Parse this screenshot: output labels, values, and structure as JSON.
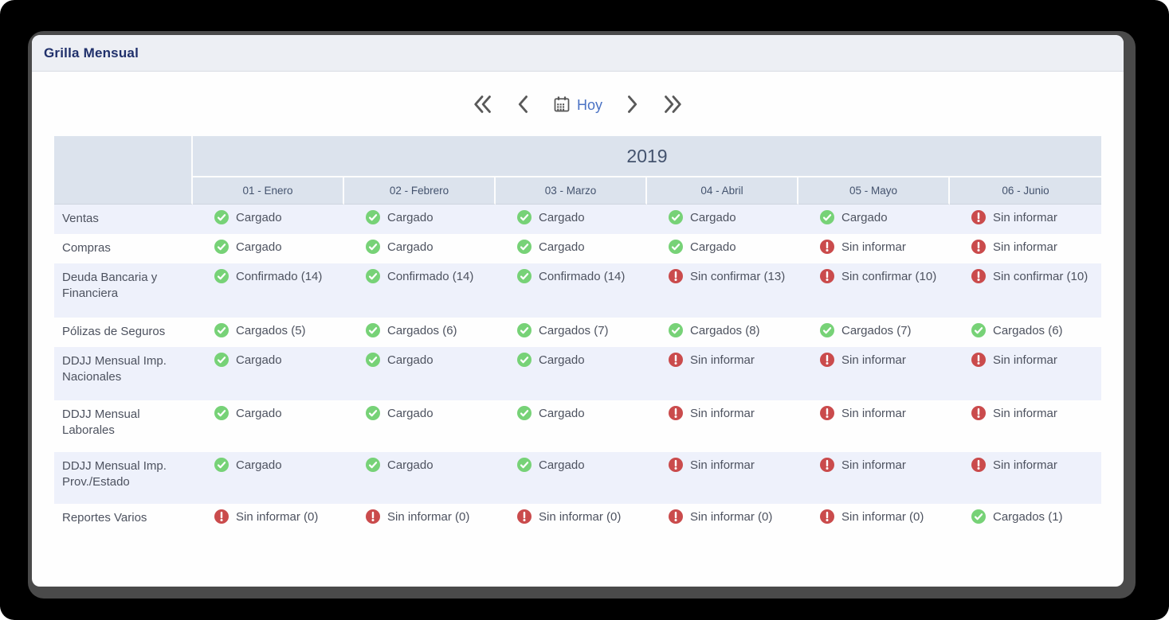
{
  "window": {
    "title": "Grilla Mensual"
  },
  "toolbar": {
    "today_label": "Hoy",
    "icons": {
      "first": "double-chevron-left-icon",
      "previous": "chevron-left-icon",
      "today": "calendar-icon",
      "next": "chevron-right-icon",
      "last": "double-chevron-right-icon"
    }
  },
  "colors": {
    "status_ok": "#77d277",
    "status_alert": "#ca4b4c",
    "accent_blue": "#4a72c4",
    "title_navy": "#20306b",
    "header_bg": "#dce3ed",
    "row_alt_bg": "#eef1fb",
    "chevron_gray": "#595959"
  },
  "grid": {
    "year": "2019",
    "months": [
      "01 - Enero",
      "02 - Febrero",
      "03 - Marzo",
      "04 - Abril",
      "05 - Mayo",
      "06 - Junio"
    ],
    "status_icons": {
      "ok": "check-circle-icon",
      "alert": "alert-circle-icon"
    },
    "rows": [
      {
        "label": "Ventas",
        "cells": [
          {
            "status": "ok",
            "label": "Cargado"
          },
          {
            "status": "ok",
            "label": "Cargado"
          },
          {
            "status": "ok",
            "label": "Cargado"
          },
          {
            "status": "ok",
            "label": "Cargado"
          },
          {
            "status": "ok",
            "label": "Cargado"
          },
          {
            "status": "alert",
            "label": "Sin informar"
          }
        ]
      },
      {
        "label": "Compras",
        "cells": [
          {
            "status": "ok",
            "label": "Cargado"
          },
          {
            "status": "ok",
            "label": "Cargado"
          },
          {
            "status": "ok",
            "label": "Cargado"
          },
          {
            "status": "ok",
            "label": "Cargado"
          },
          {
            "status": "alert",
            "label": "Sin informar"
          },
          {
            "status": "alert",
            "label": "Sin informar"
          }
        ]
      },
      {
        "label": "Deuda Bancaria y Financiera",
        "cells": [
          {
            "status": "ok",
            "label": "Confirmado (14)"
          },
          {
            "status": "ok",
            "label": "Confirmado (14)"
          },
          {
            "status": "ok",
            "label": "Confirmado (14)"
          },
          {
            "status": "alert",
            "label": "Sin confirmar (13)"
          },
          {
            "status": "alert",
            "label": "Sin confirmar (10)"
          },
          {
            "status": "alert",
            "label": "Sin confirmar (10)"
          }
        ]
      },
      {
        "label": "Pólizas de Seguros",
        "cells": [
          {
            "status": "ok",
            "label": "Cargados (5)"
          },
          {
            "status": "ok",
            "label": "Cargados (6)"
          },
          {
            "status": "ok",
            "label": "Cargados (7)"
          },
          {
            "status": "ok",
            "label": "Cargados (8)"
          },
          {
            "status": "ok",
            "label": "Cargados (7)"
          },
          {
            "status": "ok",
            "label": "Cargados (6)"
          }
        ]
      },
      {
        "label": "DDJJ Mensual Imp. Nacionales",
        "cells": [
          {
            "status": "ok",
            "label": "Cargado"
          },
          {
            "status": "ok",
            "label": "Cargado"
          },
          {
            "status": "ok",
            "label": "Cargado"
          },
          {
            "status": "alert",
            "label": "Sin informar"
          },
          {
            "status": "alert",
            "label": "Sin informar"
          },
          {
            "status": "alert",
            "label": "Sin informar"
          }
        ]
      },
      {
        "label": "DDJJ Mensual Laborales",
        "cells": [
          {
            "status": "ok",
            "label": "Cargado"
          },
          {
            "status": "ok",
            "label": "Cargado"
          },
          {
            "status": "ok",
            "label": "Cargado"
          },
          {
            "status": "alert",
            "label": "Sin informar"
          },
          {
            "status": "alert",
            "label": "Sin informar"
          },
          {
            "status": "alert",
            "label": "Sin informar"
          }
        ]
      },
      {
        "label": "DDJJ Mensual Imp. Prov./Estado",
        "cells": [
          {
            "status": "ok",
            "label": "Cargado"
          },
          {
            "status": "ok",
            "label": "Cargado"
          },
          {
            "status": "ok",
            "label": "Cargado"
          },
          {
            "status": "alert",
            "label": "Sin informar"
          },
          {
            "status": "alert",
            "label": "Sin informar"
          },
          {
            "status": "alert",
            "label": "Sin informar"
          }
        ]
      },
      {
        "label": "Reportes Varios",
        "cells": [
          {
            "status": "alert",
            "label": "Sin informar (0)"
          },
          {
            "status": "alert",
            "label": "Sin informar (0)"
          },
          {
            "status": "alert",
            "label": "Sin informar (0)"
          },
          {
            "status": "alert",
            "label": "Sin informar (0)"
          },
          {
            "status": "alert",
            "label": "Sin informar (0)"
          },
          {
            "status": "ok",
            "label": "Cargados (1)"
          }
        ]
      }
    ]
  }
}
